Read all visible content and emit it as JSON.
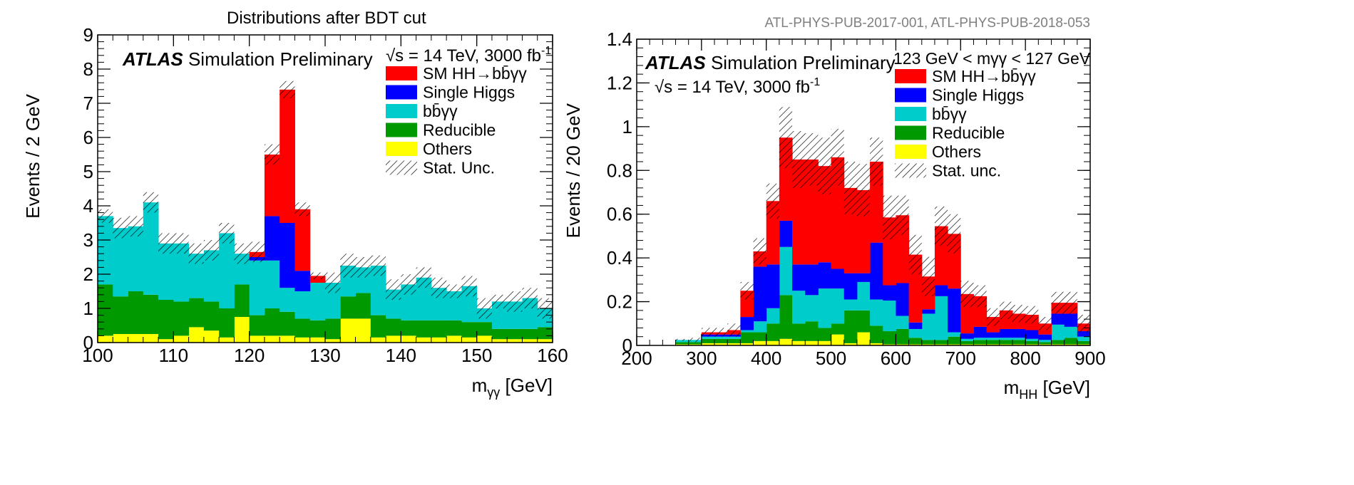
{
  "figure_title": "Distributions after BDT cut",
  "reference": "ATL-PHYS-PUB-2017-001, ATL-PHYS-PUB-2018-053",
  "colors": {
    "sm_hh": "#ff0000",
    "single_higgs": "#0000ff",
    "bbyy": "#00cccc",
    "reducible": "#009900",
    "others": "#ffff00",
    "hatch": "#000000"
  },
  "chart_data": [
    {
      "type": "bar",
      "stacked": true,
      "atlas_label": "ATLAS",
      "atlas_suffix": "Simulation Preliminary",
      "energy_label": "√s = 14 TeV, 3000 fb",
      "energy_sup": "-1",
      "cut_label": "",
      "xlabel": "m",
      "xlabel_sub": "γγ",
      "xlabel_unit": "[GeV]",
      "ylabel": "Events / 2 GeV",
      "xlim": [
        100,
        160
      ],
      "ylim": [
        0,
        9
      ],
      "xticks": [
        "100",
        "110",
        "120",
        "130",
        "140",
        "150",
        "160"
      ],
      "yticks": [
        "0",
        "1",
        "2",
        "3",
        "4",
        "5",
        "6",
        "7",
        "8",
        "9"
      ],
      "bin_edges": [
        100,
        102,
        104,
        106,
        108,
        110,
        112,
        114,
        116,
        118,
        120,
        122,
        124,
        126,
        128,
        130,
        132,
        134,
        136,
        138,
        140,
        142,
        144,
        146,
        148,
        150,
        152,
        154,
        156,
        158,
        160
      ],
      "legend": [
        {
          "key": "sm_hh",
          "label": "SM HH→bb̄γγ"
        },
        {
          "key": "single_higgs",
          "label": "Single Higgs"
        },
        {
          "key": "bbyy",
          "label": "bb̄γγ"
        },
        {
          "key": "reducible",
          "label": "Reducible"
        },
        {
          "key": "others",
          "label": "Others"
        },
        {
          "key": "hatch",
          "label": "Stat. Unc."
        }
      ],
      "series": [
        {
          "key": "others",
          "values": [
            0.2,
            0.25,
            0.25,
            0.25,
            0.1,
            0.2,
            0.45,
            0.35,
            0.15,
            0.75,
            0.2,
            0.2,
            0.2,
            0.15,
            0.15,
            0.1,
            0.7,
            0.7,
            0.15,
            0.2,
            0.2,
            0.15,
            0.15,
            0.2,
            0.15,
            0.2,
            0.1,
            0.1,
            0.1,
            0.1
          ]
        },
        {
          "key": "reducible",
          "values": [
            1.5,
            1.1,
            1.25,
            1.15,
            1.15,
            1.0,
            0.85,
            0.85,
            0.85,
            0.95,
            0.6,
            0.8,
            0.7,
            0.55,
            0.5,
            0.6,
            0.65,
            0.75,
            0.65,
            0.5,
            0.45,
            0.5,
            0.5,
            0.45,
            0.45,
            0.4,
            0.3,
            0.3,
            0.3,
            0.35
          ]
        },
        {
          "key": "bbyy",
          "values": [
            2.0,
            2.0,
            1.9,
            2.7,
            1.65,
            1.7,
            1.3,
            1.5,
            2.2,
            0.9,
            1.6,
            1.4,
            0.7,
            0.8,
            1.1,
            1.05,
            0.9,
            0.75,
            1.45,
            0.85,
            1.05,
            1.25,
            0.95,
            0.85,
            1.05,
            0.4,
            0.8,
            0.8,
            0.9,
            0.55
          ]
        },
        {
          "key": "single_higgs",
          "values": [
            0,
            0,
            0,
            0,
            0,
            0,
            0,
            0,
            0,
            0,
            0.1,
            1.3,
            1.9,
            0.6,
            0,
            0,
            0,
            0,
            0,
            0,
            0,
            0,
            0,
            0,
            0,
            0,
            0,
            0,
            0,
            0
          ]
        },
        {
          "key": "sm_hh",
          "values": [
            0,
            0,
            0,
            0,
            0,
            0,
            0,
            0,
            0,
            0,
            0.15,
            1.8,
            3.9,
            1.8,
            0.2,
            0,
            0,
            0,
            0,
            0,
            0,
            0,
            0,
            0,
            0,
            0,
            0,
            0,
            0,
            0
          ]
        }
      ],
      "stat_unc": [
        0.2,
        0.3,
        0.3,
        0.3,
        0.3,
        0.3,
        0.3,
        0.3,
        0.3,
        0.3,
        0.3,
        0.3,
        0.25,
        0.2,
        0.1,
        0.3,
        0.35,
        0.3,
        0.3,
        0.3,
        0.3,
        0.3,
        0.3,
        0.2,
        0.3,
        0.3,
        0.2,
        0.3,
        0.3,
        0.3
      ]
    },
    {
      "type": "bar",
      "stacked": true,
      "atlas_label": "ATLAS",
      "atlas_suffix": "Simulation Preliminary",
      "energy_label": "√s = 14 TeV, 3000 fb",
      "energy_sup": "-1",
      "cut_label": "123 GeV < mγγ < 127 GeV",
      "xlabel": "m",
      "xlabel_sub": "HH",
      "xlabel_unit": "[GeV]",
      "ylabel": "Events / 20 GeV",
      "xlim": [
        200,
        900
      ],
      "ylim": [
        0,
        1.4
      ],
      "xticks": [
        "200",
        "300",
        "400",
        "500",
        "600",
        "700",
        "800",
        "900"
      ],
      "yticks": [
        "0",
        "0.2",
        "0.4",
        "0.6",
        "0.8",
        "1",
        "1.2",
        "1.4"
      ],
      "bin_edges": [
        200,
        220,
        240,
        260,
        280,
        300,
        320,
        340,
        360,
        380,
        400,
        420,
        440,
        460,
        480,
        500,
        520,
        540,
        560,
        580,
        600,
        620,
        640,
        660,
        680,
        700,
        720,
        740,
        760,
        780,
        800,
        820,
        840,
        860,
        880,
        900
      ],
      "legend": [
        {
          "key": "sm_hh",
          "label": "SM HH→bb̄γγ"
        },
        {
          "key": "single_higgs",
          "label": "Single Higgs"
        },
        {
          "key": "bbyy",
          "label": "bb̄γγ"
        },
        {
          "key": "reducible",
          "label": "Reducible"
        },
        {
          "key": "others",
          "label": "Others"
        },
        {
          "key": "hatch",
          "label": "Stat. unc."
        }
      ],
      "series": [
        {
          "key": "others",
          "values": [
            0,
            0,
            0,
            0.005,
            0.005,
            0.01,
            0.01,
            0.01,
            0.01,
            0.02,
            0.02,
            0.03,
            0.02,
            0.02,
            0.02,
            0.05,
            0.01,
            0.06,
            0.01,
            0.005,
            0.005,
            0.005,
            0.005,
            0.005,
            0.005,
            0.005,
            0.005,
            0.005,
            0.005,
            0.005,
            0.005,
            0.005,
            0.005,
            0.005,
            0.005
          ]
        },
        {
          "key": "reducible",
          "values": [
            0,
            0,
            0,
            0.01,
            0.01,
            0.02,
            0.02,
            0.02,
            0.05,
            0.04,
            0.08,
            0.2,
            0.08,
            0.09,
            0.06,
            0.05,
            0.15,
            0.1,
            0.08,
            0.06,
            0.07,
            0.03,
            0.02,
            0.02,
            0.035,
            0.015,
            0.02,
            0.02,
            0.02,
            0.02,
            0.015,
            0.01,
            0.02,
            0.03,
            0.015
          ]
        },
        {
          "key": "bbyy",
          "values": [
            0,
            0,
            0,
            0.01,
            0.01,
            0.01,
            0.01,
            0.01,
            0.01,
            0.05,
            0.07,
            0.22,
            0.15,
            0.12,
            0.18,
            0.16,
            0.05,
            0.13,
            0.12,
            0.14,
            0.06,
            0.04,
            0.12,
            0.2,
            0.02,
            0.01,
            0.01,
            0.01,
            0.01,
            0.01,
            0.01,
            0.01,
            0.07,
            0.05,
            0.02
          ]
        },
        {
          "key": "single_higgs",
          "values": [
            0,
            0,
            0,
            0,
            0,
            0.01,
            0.01,
            0.01,
            0.06,
            0.25,
            0.2,
            0.12,
            0.12,
            0.14,
            0.12,
            0.09,
            0.12,
            0.04,
            0.26,
            0.07,
            0.15,
            0.03,
            0.02,
            0.05,
            0.2,
            0.025,
            0.05,
            0.025,
            0.04,
            0.04,
            0.04,
            0.025,
            0.05,
            0.06,
            0.025
          ]
        },
        {
          "key": "sm_hh",
          "values": [
            0,
            0,
            0,
            0,
            0,
            0.01,
            0.01,
            0.02,
            0.12,
            0.07,
            0.29,
            0.38,
            0.48,
            0.48,
            0.44,
            0.51,
            0.39,
            0.38,
            0.37,
            0.31,
            0.31,
            0.31,
            0.15,
            0.27,
            0.25,
            0.18,
            0.14,
            0.07,
            0.085,
            0.07,
            0.07,
            0.05,
            0.05,
            0.05,
            0.035
          ]
        }
      ],
      "stat_unc": [
        0,
        0,
        0,
        0.005,
        0.01,
        0.02,
        0.02,
        0.03,
        0.04,
        0.06,
        0.08,
        0.14,
        0.13,
        0.12,
        0.13,
        0.13,
        0.12,
        0.12,
        0.11,
        0.1,
        0.09,
        0.09,
        0.09,
        0.09,
        0.09,
        0.06,
        0.05,
        0.04,
        0.04,
        0.04,
        0.04,
        0.03,
        0.05,
        0.05,
        0.04
      ]
    }
  ]
}
